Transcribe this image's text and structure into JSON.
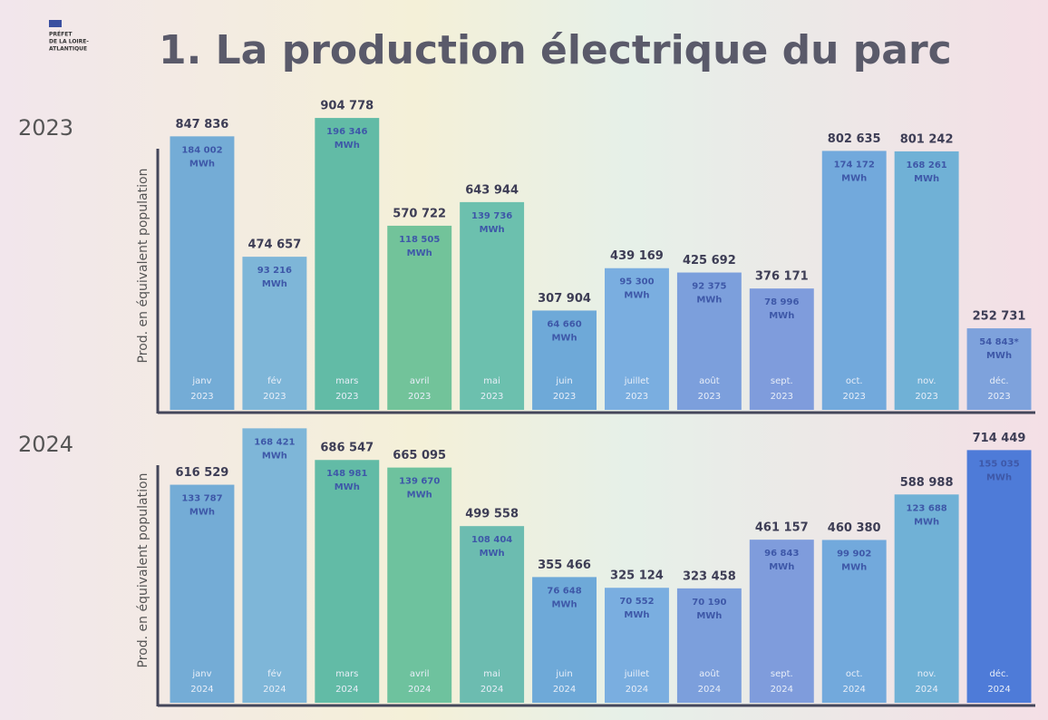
{
  "slide": {
    "title": "1. La production électrique du parc",
    "logo": [
      "PRÉFET",
      "DE LA LOIRE-",
      "ATLANTIQUE"
    ]
  },
  "chart_data": [
    {
      "type": "bar",
      "year": "2023",
      "y_label": "Prod. en équivalent population",
      "unit": "MWh",
      "categories": [
        "janv",
        "fév",
        "mars",
        "avril",
        "mai",
        "juin",
        "juillet",
        "août",
        "sept.",
        "oct.",
        "nov.",
        "déc."
      ],
      "values": [
        847836,
        474657,
        904778,
        570722,
        643944,
        307904,
        439169,
        425692,
        376171,
        802635,
        801242,
        252731
      ],
      "value_labels": [
        "847 836",
        "474 657",
        "904 778",
        "570 722",
        "643 944",
        "307 904",
        "439 169",
        "425 692",
        "376 171",
        "802 635",
        "801 242",
        "252 731"
      ],
      "mwh_labels": [
        "184 002",
        "93 216",
        "196 346",
        "118 505",
        "139 736",
        "64 660",
        "95 300",
        "92 375",
        "78 996",
        "174 172",
        "168 261",
        "54 843*"
      ],
      "colors": [
        "#74acd6",
        "#7eb6d8",
        "#62bba6",
        "#72c39a",
        "#6cc0ae",
        "#6ea9d8",
        "#7aaee0",
        "#7c9fdc",
        "#7f9cdc",
        "#72a9dc",
        "#70b1d6",
        "#7ea2dc"
      ],
      "ylim": [
        0,
        950000
      ]
    },
    {
      "type": "bar",
      "year": "2024",
      "y_label": "Prod. en équivalent population",
      "unit": "MWh",
      "categories": [
        "janv",
        "fév",
        "mars",
        "avril",
        "mai",
        "juin",
        "juillet",
        "août",
        "sept.",
        "oct.",
        "nov.",
        "déc."
      ],
      "values": [
        616529,
        776000,
        686547,
        665095,
        499558,
        355466,
        325124,
        323458,
        461157,
        460380,
        588988,
        714449
      ],
      "value_labels": [
        "616 529",
        null,
        "686 547",
        "665 095",
        "499 558",
        "355 466",
        "325 124",
        "323 458",
        "461 157",
        "460 380",
        "588 988",
        "714 449"
      ],
      "mwh_labels": [
        "133 787",
        "168 421",
        "148 981",
        "139 670",
        "108 404",
        "76 648",
        "70 552",
        "70 190",
        "96 843",
        "99 902",
        "123 688",
        "155 035"
      ],
      "colors": [
        "#74acd6",
        "#7eb6d8",
        "#62bba6",
        "#6ec29e",
        "#6cbcb0",
        "#6ea9d8",
        "#7aaee0",
        "#7c9fdc",
        "#7f9cdc",
        "#72a9dc",
        "#70b1d6",
        "#4e7bd8"
      ],
      "ylim": [
        0,
        800000
      ]
    }
  ]
}
